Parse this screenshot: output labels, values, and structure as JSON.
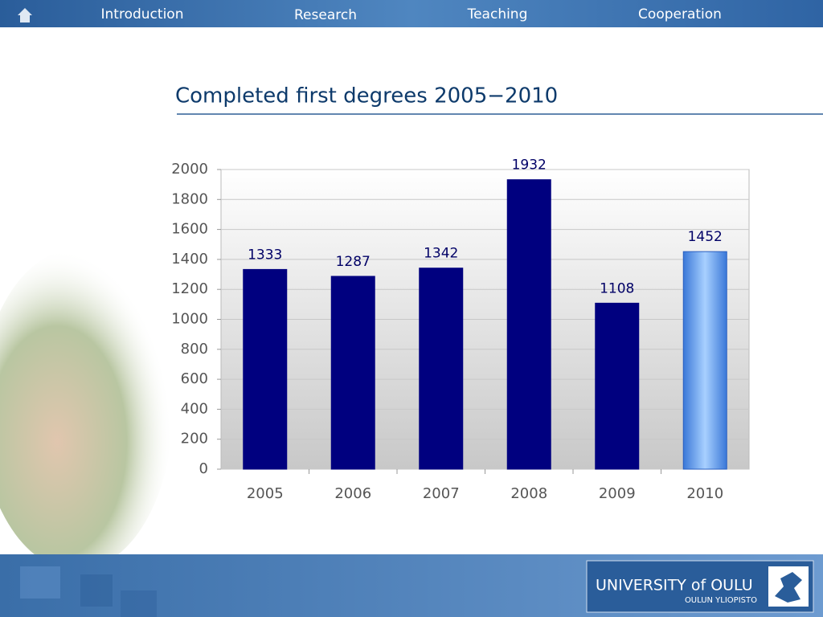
{
  "nav": [
    "Introduction",
    "Research",
    "Teaching",
    "Cooperation"
  ],
  "logo": {
    "name": "UNIVERSITY of OULU",
    "subname": "OULUN YLIOPISTO"
  },
  "chart_data": {
    "type": "bar",
    "title": "Completed first degrees 2005−2010",
    "categories": [
      "2005",
      "2006",
      "2007",
      "2008",
      "2009",
      "2010"
    ],
    "values": [
      1333,
      1287,
      1342,
      1932,
      1108,
      1452
    ],
    "colors": [
      "#00007f",
      "#00007f",
      "#00007f",
      "#00007f",
      "#00007f",
      "#7fb4f4"
    ],
    "ylim": [
      0,
      2000
    ],
    "yticks": [
      0,
      200,
      400,
      600,
      800,
      1000,
      1200,
      1400,
      1600,
      1800,
      2000
    ],
    "grid": true
  }
}
